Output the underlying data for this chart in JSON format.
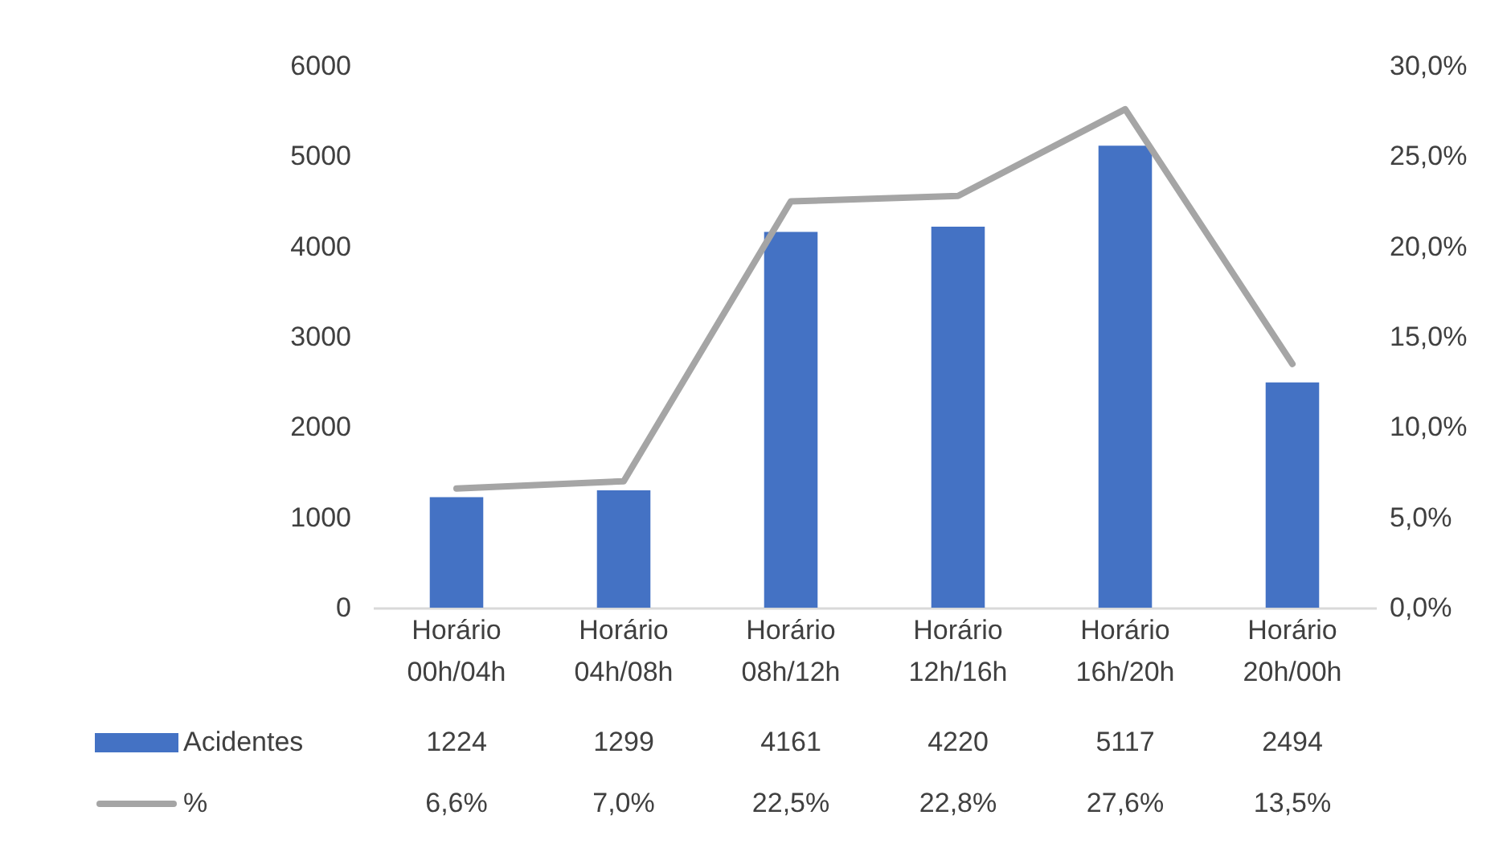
{
  "chart_data": {
    "type": "bar",
    "categories": [
      "Horário 00h/04h",
      "Horário 04h/08h",
      "Horário 08h/12h",
      "Horário 12h/16h",
      "Horário 16h/20h",
      "Horário 20h/00h"
    ],
    "series": [
      {
        "name": "Acidentes",
        "color": "#4472c4",
        "values": [
          1224,
          1299,
          4161,
          4220,
          5117,
          2494
        ],
        "value_labels": [
          "1224",
          "1299",
          "4161",
          "4220",
          "5117",
          "2494"
        ]
      },
      {
        "name": "%",
        "type": "line",
        "axis": "y2",
        "color": "#a5a5a5",
        "values": [
          6.6,
          7.0,
          22.5,
          22.8,
          27.6,
          13.5
        ],
        "value_labels": [
          "6,6%",
          "7,0%",
          "22,5%",
          "22,8%",
          "27,6%",
          "13,5%"
        ]
      }
    ],
    "ylim": [
      0,
      6000
    ],
    "yticks": [
      0,
      1000,
      2000,
      3000,
      4000,
      5000,
      6000
    ],
    "y2lim": [
      0,
      30
    ],
    "y2ticks": [
      {
        "value": 0,
        "label": "0,0%"
      },
      {
        "value": 5,
        "label": "5,0%"
      },
      {
        "value": 10,
        "label": "10,0%"
      },
      {
        "value": 15,
        "label": "15,0%"
      },
      {
        "value": 20,
        "label": "20,0%"
      },
      {
        "value": 25,
        "label": "25,0%"
      },
      {
        "value": 30,
        "label": "30,0%"
      }
    ],
    "legend": "bottom",
    "grid": false
  }
}
